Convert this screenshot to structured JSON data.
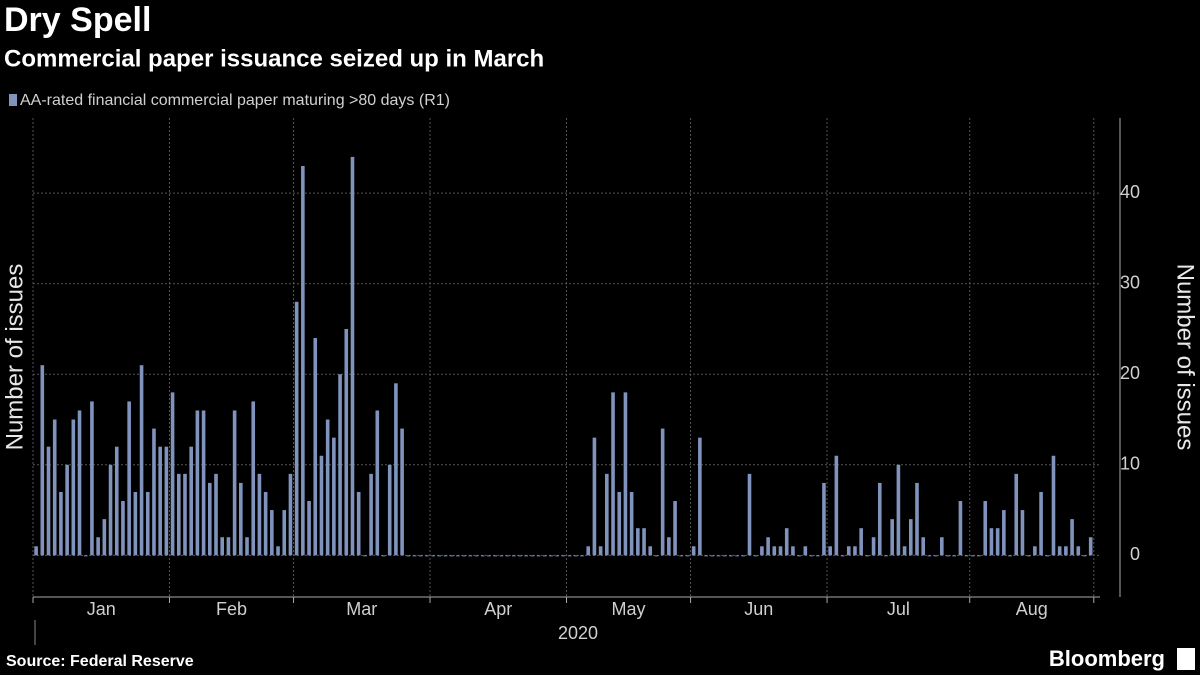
{
  "chart_data": {
    "type": "bar",
    "title": "Dry Spell",
    "subtitle": "Commercial paper issuance seized up in March",
    "y_label": "Number of issues",
    "year_label": "2020",
    "source": "Source: Federal Reserve",
    "brand": "Bloomberg",
    "months": [
      "Jan",
      "Feb",
      "Mar",
      "Apr",
      "May",
      "Jun",
      "Jul",
      "Aug"
    ],
    "xticks": [
      0,
      22,
      42,
      64,
      86,
      106,
      128,
      151,
      171
    ],
    "xlim": [
      -0.5,
      171.5
    ],
    "ylim": [
      -4.6,
      48.3
    ],
    "yticks": [
      0,
      10,
      20,
      30,
      40
    ],
    "grid": true,
    "series": [
      {
        "name": "AA-rated financial commercial paper maturing >80 days (R1)",
        "color": "#7f93bd",
        "axis": "y2",
        "values": [
          1,
          21,
          12,
          15,
          7,
          10,
          15,
          16,
          0,
          17,
          2,
          4,
          10,
          12,
          6,
          17,
          7,
          21,
          7,
          14,
          12,
          12,
          18,
          9,
          9,
          12,
          16,
          16,
          8,
          9,
          2,
          2,
          16,
          8,
          2,
          17,
          9,
          7,
          5,
          1,
          5,
          9,
          28,
          43,
          6,
          24,
          11,
          15,
          13,
          20,
          25,
          44,
          7,
          0,
          9,
          16,
          0,
          10,
          19,
          14,
          0,
          0,
          0,
          0,
          0,
          0,
          0,
          0,
          0,
          0,
          0,
          0,
          0,
          0,
          0,
          0,
          0,
          0,
          0,
          0,
          0,
          0,
          0,
          0,
          0,
          0,
          0,
          0,
          0,
          1,
          13,
          1,
          9,
          18,
          7,
          18,
          7,
          3,
          3,
          1,
          0,
          14,
          2,
          6,
          0,
          0,
          1,
          13,
          0,
          0,
          0,
          0,
          0,
          0,
          0,
          9,
          0,
          1,
          2,
          1,
          1,
          3,
          1,
          0,
          1,
          0,
          0,
          8,
          1,
          11,
          0,
          1,
          1,
          3,
          0,
          2,
          8,
          0,
          4,
          10,
          1,
          4,
          8,
          2,
          0,
          0,
          2,
          0,
          0,
          6,
          0,
          0,
          0,
          6,
          3,
          3,
          5,
          0,
          9,
          5,
          0,
          1,
          7,
          0,
          11,
          1,
          1,
          4,
          1,
          0,
          2
        ]
      }
    ]
  }
}
